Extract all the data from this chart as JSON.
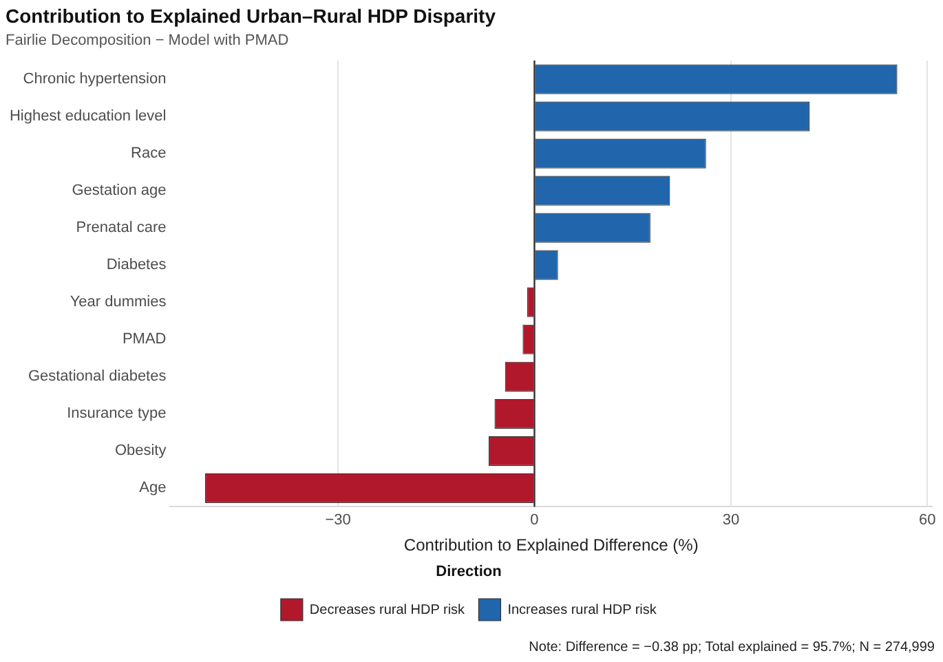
{
  "chart_data": {
    "type": "bar",
    "orientation": "horizontal",
    "title": "Contribution to Explained Urban–Rural HDP Disparity",
    "subtitle": "Fairlie Decomposition − Model with PMAD",
    "xlabel": "Contribution to Explained Difference (%)",
    "legend_title": "Direction",
    "categories": [
      "Chronic hypertension",
      "Highest education level",
      "Race",
      "Gestation age",
      "Prenatal care",
      "Diabetes",
      "Year dummies",
      "PMAD",
      "Gestational diabetes",
      "Insurance type",
      "Obesity",
      "Age"
    ],
    "series": [
      {
        "name": "Decreases rural HDP risk",
        "color": "#b2182b",
        "values": [
          null,
          null,
          null,
          null,
          null,
          null,
          -1.1,
          -1.8,
          -4.5,
          -6.1,
          -7.0,
          -50.3
        ]
      },
      {
        "name": "Increases rural HDP risk",
        "color": "#2166ac",
        "values": [
          55.4,
          42.0,
          26.2,
          20.7,
          17.7,
          3.6,
          null,
          null,
          null,
          null,
          null,
          null
        ]
      }
    ],
    "xlim": [
      -55.6,
      60.7
    ],
    "xticks": [
      -30,
      0,
      30,
      60
    ],
    "grid": "x",
    "legend": "bottom",
    "ref_lines": [
      {
        "axis": "x",
        "value": 0,
        "color": "#333333"
      }
    ],
    "annotations": [
      "Note: Difference = −0.38 pp; Total explained = 95.7%; N = 274,999"
    ]
  }
}
